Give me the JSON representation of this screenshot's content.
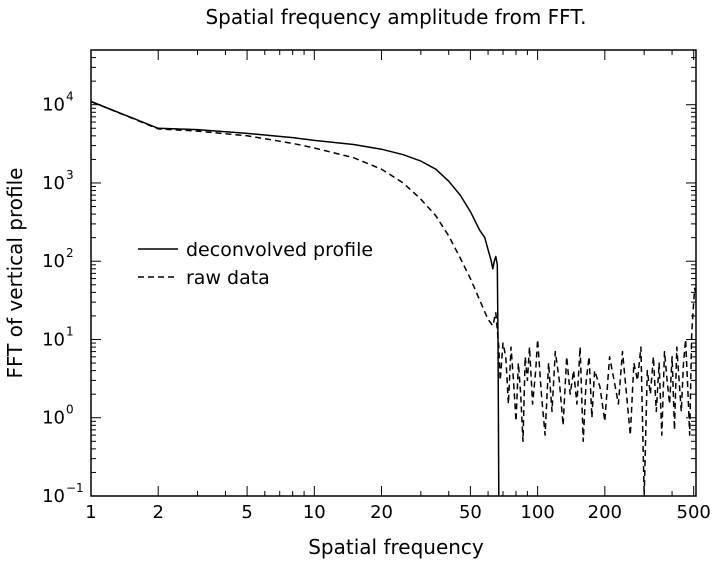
{
  "chart_data": {
    "type": "line",
    "title": "Spatial frequency amplitude from FFT.",
    "xlabel": "Spatial frequency",
    "ylabel": "FFT of vertical profile",
    "xscale": "log",
    "yscale": "log",
    "xlim": [
      1,
      512
    ],
    "ylim": [
      0.1,
      50000
    ],
    "grid": false,
    "legend_position": "left",
    "x_ticks": [
      {
        "value": 1,
        "label": "1"
      },
      {
        "value": 2,
        "label": "2"
      },
      {
        "value": 5,
        "label": "5"
      },
      {
        "value": 10,
        "label": "10"
      },
      {
        "value": 20,
        "label": "20"
      },
      {
        "value": 50,
        "label": "50"
      },
      {
        "value": 100,
        "label": "100"
      },
      {
        "value": 200,
        "label": "200"
      },
      {
        "value": 500,
        "label": "500"
      }
    ],
    "y_ticks": [
      {
        "value": 0.1,
        "base": "10",
        "exp": "−1"
      },
      {
        "value": 1,
        "base": "10",
        "exp": "0"
      },
      {
        "value": 10,
        "base": "10",
        "exp": "1"
      },
      {
        "value": 100,
        "base": "10",
        "exp": "2"
      },
      {
        "value": 1000,
        "base": "10",
        "exp": "3"
      },
      {
        "value": 10000,
        "base": "10",
        "exp": "4"
      }
    ],
    "series": [
      {
        "name": "deconvolved profile",
        "style": "solid",
        "x": [
          1,
          2,
          3,
          5,
          8,
          10,
          15,
          20,
          25,
          30,
          35,
          40,
          45,
          50,
          55,
          58,
          60,
          62,
          63,
          64,
          65,
          66,
          66.5,
          67
        ],
        "y": [
          11000,
          5000,
          4800,
          4300,
          3800,
          3500,
          3100,
          2700,
          2300,
          1900,
          1500,
          1050,
          700,
          430,
          250,
          200,
          140,
          100,
          80,
          100,
          115,
          90,
          10,
          0.1
        ]
      },
      {
        "name": "raw data",
        "style": "dashed",
        "x": [
          1,
          2,
          3,
          5,
          8,
          10,
          15,
          20,
          25,
          30,
          35,
          40,
          45,
          50,
          55,
          60,
          63,
          65,
          67,
          68,
          70,
          72,
          74,
          76,
          78,
          80,
          82,
          84,
          86,
          88,
          90,
          92,
          95,
          98,
          100,
          104,
          108,
          112,
          116,
          120,
          125,
          130,
          135,
          140,
          145,
          150,
          155,
          160,
          165,
          170,
          175,
          180,
          190,
          200,
          210,
          220,
          230,
          240,
          250,
          260,
          270,
          280,
          290,
          300,
          310,
          320,
          330,
          340,
          350,
          360,
          370,
          380,
          390,
          400,
          410,
          420,
          430,
          440,
          450,
          460,
          470,
          480,
          490,
          500,
          505,
          512
        ],
        "y": [
          11000,
          4900,
          4600,
          4000,
          3200,
          2800,
          2100,
          1500,
          1000,
          620,
          380,
          210,
          110,
          60,
          32,
          18,
          15,
          22,
          8,
          3,
          9,
          6,
          1.5,
          8,
          3,
          0.9,
          5,
          2,
          0.5,
          6,
          3,
          8,
          1.5,
          4,
          10,
          2,
          0.6,
          5,
          1.2,
          7,
          3,
          0.8,
          6,
          2,
          4,
          1.5,
          8,
          0.5,
          3,
          6,
          1,
          4,
          2.5,
          0.9,
          6,
          3,
          1.5,
          7,
          2,
          0.6,
          5,
          3,
          8,
          0.05,
          4,
          2,
          6,
          1.2,
          5,
          0.6,
          7,
          3,
          1.5,
          6,
          0.7,
          8,
          3,
          1.2,
          5,
          10,
          2.5,
          0.6,
          12,
          30,
          45,
          38
        ]
      }
    ]
  }
}
